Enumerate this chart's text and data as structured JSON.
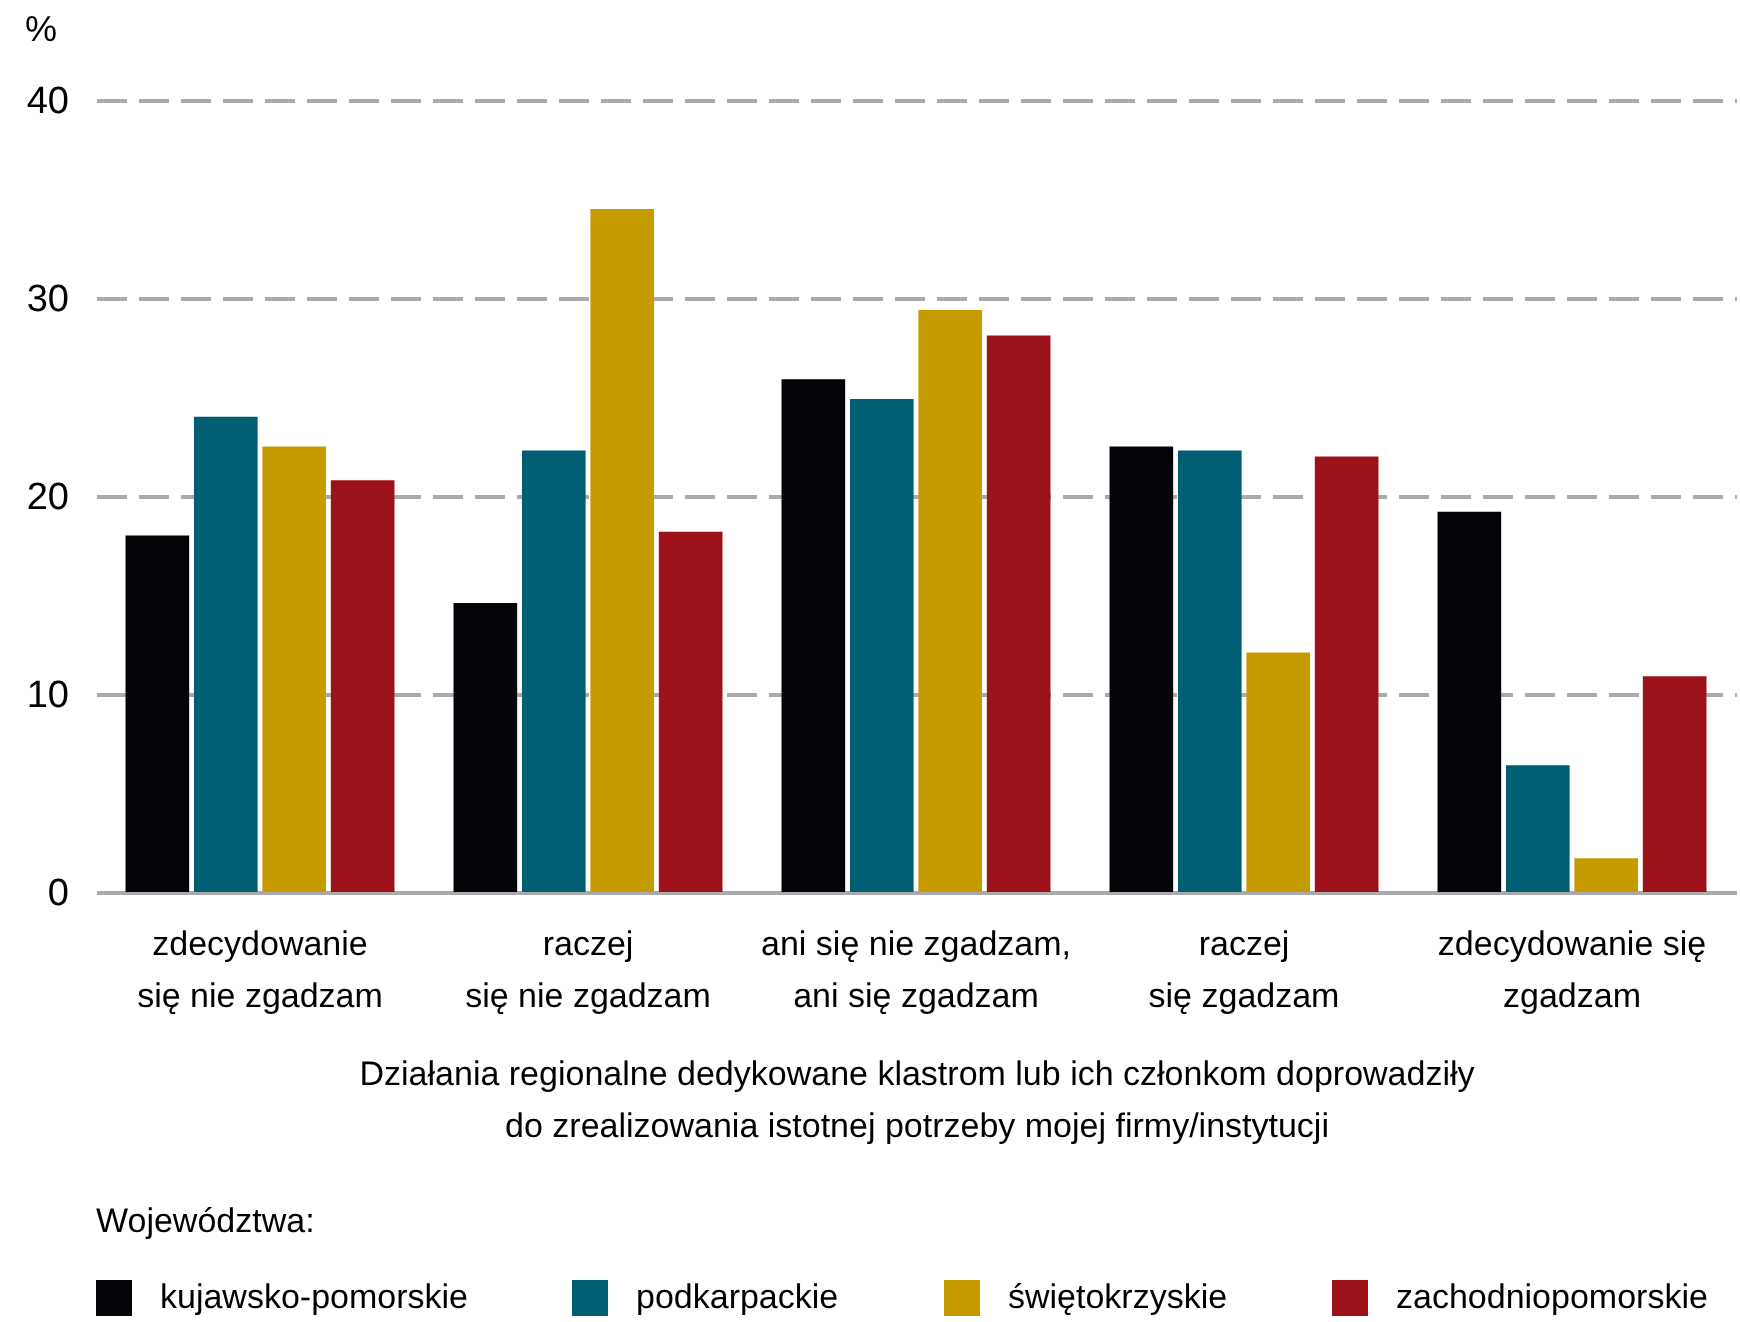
{
  "chart_data": {
    "type": "bar",
    "categories": [
      "zdecydowanie\nsię nie zgadzam",
      "raczej\nsię nie zgadzam",
      "ani się nie zgadzam,\nani się zgadzam",
      "raczej\nsię zgadzam",
      "zdecydowanie się\nzgadzam"
    ],
    "series": [
      {
        "name": "kujawsko-pomorskie",
        "color": "#020408",
        "values": [
          18.0,
          14.6,
          25.9,
          22.5,
          19.2
        ]
      },
      {
        "name": "podkarpackie",
        "color": "#005e72",
        "values": [
          24.0,
          22.3,
          24.9,
          22.3,
          6.4
        ]
      },
      {
        "name": "świętokrzyskie",
        "color": "#c49c00",
        "values": [
          22.5,
          34.5,
          29.4,
          12.1,
          1.7
        ]
      },
      {
        "name": "zachodniopomorskie",
        "color": "#9c1218",
        "values": [
          20.8,
          18.2,
          28.1,
          22.0,
          10.9
        ]
      }
    ],
    "xlabel": "Działania regionalne dedykowane klastrom lub ich członkom doprowadziły\ndo zrealizowania istotnej potrzeby mojej firmy/instytucji",
    "ylabel": "%",
    "legend_title": "Województwa:",
    "ylim": [
      0,
      40
    ],
    "yticks": [
      0,
      10,
      20,
      30,
      40
    ],
    "grid": "y",
    "legend": "bottom"
  }
}
